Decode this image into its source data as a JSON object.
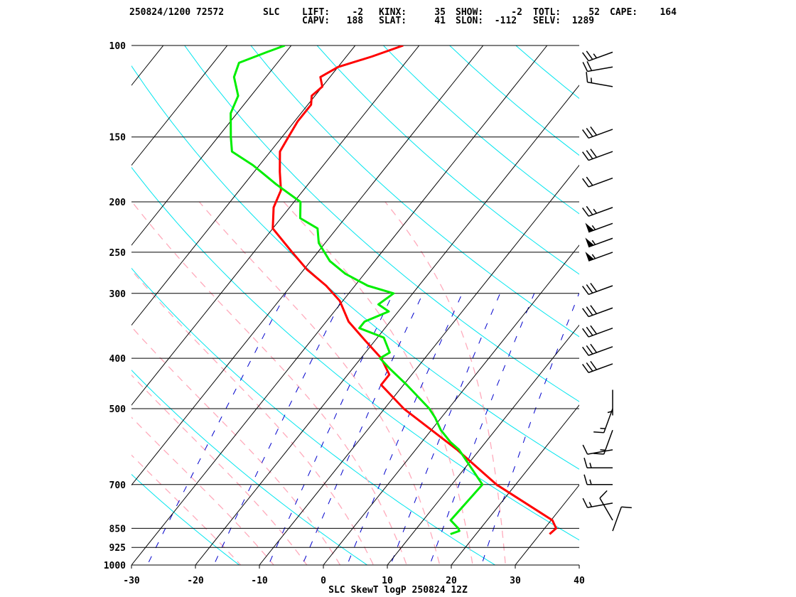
{
  "header": {
    "line1": [
      {
        "key": "date_station",
        "text": "250824/1200 72572"
      },
      {
        "key": "station",
        "text": "SLC"
      },
      {
        "key": "lift",
        "text": "LIFT:    -2"
      },
      {
        "key": "kinx",
        "text": "KINX:     35"
      },
      {
        "key": "show",
        "text": "SHOW:     -2"
      },
      {
        "key": "totl",
        "text": "TOTL:     52"
      },
      {
        "key": "cape",
        "text": "CAPE:    164"
      }
    ],
    "line2": [
      {
        "key": "capv",
        "text": "CAPV:   188"
      },
      {
        "key": "slat",
        "text": "SLAT:     41"
      },
      {
        "key": "slon",
        "text": "SLON:  -112"
      },
      {
        "key": "selv",
        "text": "SELV:  1289"
      }
    ]
  },
  "footer_title": "SLC SkewT logP 250824 12Z",
  "colors": {
    "temperature": "#ff0000",
    "dewpoint": "#00ee00",
    "dry_adiabat": "#00e5ee",
    "moist_adiabat": "#ffaabb",
    "mixing_ratio": "#0000cc",
    "isotherm": "#000000",
    "isobar": "#000000"
  },
  "chart_data": {
    "type": "skewt",
    "title": "SLC SkewT logP 250824 12Z",
    "xlabel": "",
    "ylabel": "",
    "xlim": [
      -30,
      40
    ],
    "ylim": [
      1000,
      100
    ],
    "y_scale": "log",
    "x_ticks": [
      -30,
      -20,
      -10,
      0,
      10,
      20,
      30,
      40
    ],
    "y_ticks": [
      100,
      150,
      200,
      250,
      300,
      400,
      500,
      700,
      850,
      925,
      1000
    ],
    "series": [
      {
        "key": "temperature",
        "points": [
          {
            "p": 872,
            "t": 31.5
          },
          {
            "p": 850,
            "t": 31.8
          },
          {
            "p": 820,
            "t": 30.2
          },
          {
            "p": 700,
            "t": 17.0
          },
          {
            "p": 600,
            "t": 6.5
          },
          {
            "p": 500,
            "t": -7.0
          },
          {
            "p": 450,
            "t": -13.5
          },
          {
            "p": 430,
            "t": -13.5
          },
          {
            "p": 400,
            "t": -16.8
          },
          {
            "p": 370,
            "t": -21.5
          },
          {
            "p": 340,
            "t": -26.5
          },
          {
            "p": 310,
            "t": -30.5
          },
          {
            "p": 290,
            "t": -34.5
          },
          {
            "p": 270,
            "t": -39.5
          },
          {
            "p": 250,
            "t": -44.0
          },
          {
            "p": 225,
            "t": -50.0
          },
          {
            "p": 205,
            "t": -52.5
          },
          {
            "p": 190,
            "t": -53.5
          },
          {
            "p": 175,
            "t": -56.0
          },
          {
            "p": 160,
            "t": -58.5
          },
          {
            "p": 150,
            "t": -59.0
          },
          {
            "p": 140,
            "t": -59.5
          },
          {
            "p": 130,
            "t": -59.5
          },
          {
            "p": 125,
            "t": -60.5
          },
          {
            "p": 120,
            "t": -60.0
          },
          {
            "p": 115,
            "t": -61.5
          },
          {
            "p": 110,
            "t": -60.0
          },
          {
            "p": 105,
            "t": -56.0
          },
          {
            "p": 100,
            "t": -52.5
          }
        ]
      },
      {
        "key": "dewpoint",
        "points": [
          {
            "p": 872,
            "t": 16.0
          },
          {
            "p": 860,
            "t": 17.0
          },
          {
            "p": 850,
            "t": 16.5
          },
          {
            "p": 820,
            "t": 14.3
          },
          {
            "p": 700,
            "t": 14.8
          },
          {
            "p": 600,
            "t": 6.8
          },
          {
            "p": 580,
            "t": 4.5
          },
          {
            "p": 550,
            "t": 1.5
          },
          {
            "p": 520,
            "t": -1.0
          },
          {
            "p": 500,
            "t": -3.0
          },
          {
            "p": 450,
            "t": -9.5
          },
          {
            "p": 420,
            "t": -14.0
          },
          {
            "p": 400,
            "t": -17.0
          },
          {
            "p": 390,
            "t": -16.2
          },
          {
            "p": 365,
            "t": -19.0
          },
          {
            "p": 350,
            "t": -24.0
          },
          {
            "p": 340,
            "t": -24.0
          },
          {
            "p": 325,
            "t": -21.5
          },
          {
            "p": 315,
            "t": -24.0
          },
          {
            "p": 300,
            "t": -23.0
          },
          {
            "p": 290,
            "t": -28.0
          },
          {
            "p": 275,
            "t": -33.0
          },
          {
            "p": 260,
            "t": -37.0
          },
          {
            "p": 240,
            "t": -41.0
          },
          {
            "p": 225,
            "t": -43.0
          },
          {
            "p": 215,
            "t": -47.0
          },
          {
            "p": 200,
            "t": -49.0
          },
          {
            "p": 185,
            "t": -55.0
          },
          {
            "p": 170,
            "t": -61.0
          },
          {
            "p": 160,
            "t": -66.0
          },
          {
            "p": 150,
            "t": -68.0
          },
          {
            "p": 135,
            "t": -71.0
          },
          {
            "p": 125,
            "t": -72.0
          },
          {
            "p": 115,
            "t": -75.0
          },
          {
            "p": 108,
            "t": -76.0
          },
          {
            "p": 103,
            "t": -73.0
          },
          {
            "p": 100,
            "t": -71.0
          }
        ]
      }
    ],
    "wind_barbs": [
      {
        "p": 860,
        "dir": 20,
        "spd": 10
      },
      {
        "p": 820,
        "dir": 330,
        "spd": 10
      },
      {
        "p": 760,
        "dir": 260,
        "spd": 15
      },
      {
        "p": 700,
        "dir": 270,
        "spd": 15
      },
      {
        "p": 650,
        "dir": 270,
        "spd": 15
      },
      {
        "p": 600,
        "dir": 260,
        "spd": 10
      },
      {
        "p": 550,
        "dir": 200,
        "spd": 15
      },
      {
        "p": 500,
        "dir": 200,
        "spd": 15
      },
      {
        "p": 460,
        "dir": 180,
        "spd": 5
      },
      {
        "p": 410,
        "dir": 250,
        "spd": 30
      },
      {
        "p": 380,
        "dir": 250,
        "spd": 30
      },
      {
        "p": 350,
        "dir": 250,
        "spd": 30
      },
      {
        "p": 320,
        "dir": 250,
        "spd": 30
      },
      {
        "p": 290,
        "dir": 250,
        "spd": 30
      },
      {
        "p": 250,
        "dir": 250,
        "spd": 55
      },
      {
        "p": 235,
        "dir": 250,
        "spd": 55
      },
      {
        "p": 220,
        "dir": 250,
        "spd": 55
      },
      {
        "p": 205,
        "dir": 250,
        "spd": 25
      },
      {
        "p": 180,
        "dir": 250,
        "spd": 20
      },
      {
        "p": 160,
        "dir": 250,
        "spd": 30
      },
      {
        "p": 145,
        "dir": 250,
        "spd": 30
      },
      {
        "p": 120,
        "dir": 280,
        "spd": 15
      },
      {
        "p": 110,
        "dir": 260,
        "spd": 20
      },
      {
        "p": 103,
        "dir": 250,
        "spd": 25
      }
    ]
  }
}
